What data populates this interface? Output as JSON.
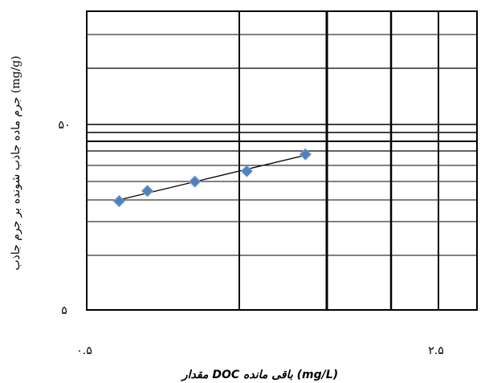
{
  "chart_data": {
    "type": "scatter",
    "xlabel": "مقدار DOC باقی مانده (mg/L)",
    "ylabel": "جرم ماده جاذب شونده بر جرم جاذب (mg/g)",
    "x_scale": "log",
    "y_scale": "log",
    "xlim": [
      0.5,
      2.5
    ],
    "ylim": [
      5,
      50
    ],
    "x_ticks": [
      {
        "value": 0.5,
        "label": "۰.۵"
      },
      {
        "value": 2.5,
        "label": "۲.۵"
      }
    ],
    "y_ticks": [
      {
        "value": 5,
        "label": "۵"
      },
      {
        "value": 50,
        "label": "۵۰"
      }
    ],
    "grid": true,
    "legend": "none",
    "marker_color": "#4f81bd",
    "series": [
      {
        "x": [
          0.58,
          0.66,
          0.82,
          1.04,
          1.36
        ],
        "y": [
          19.3,
          21.9,
          24.6,
          28.0,
          34.5
        ]
      }
    ],
    "trendline": {
      "type": "linear",
      "color": "#000000"
    }
  }
}
